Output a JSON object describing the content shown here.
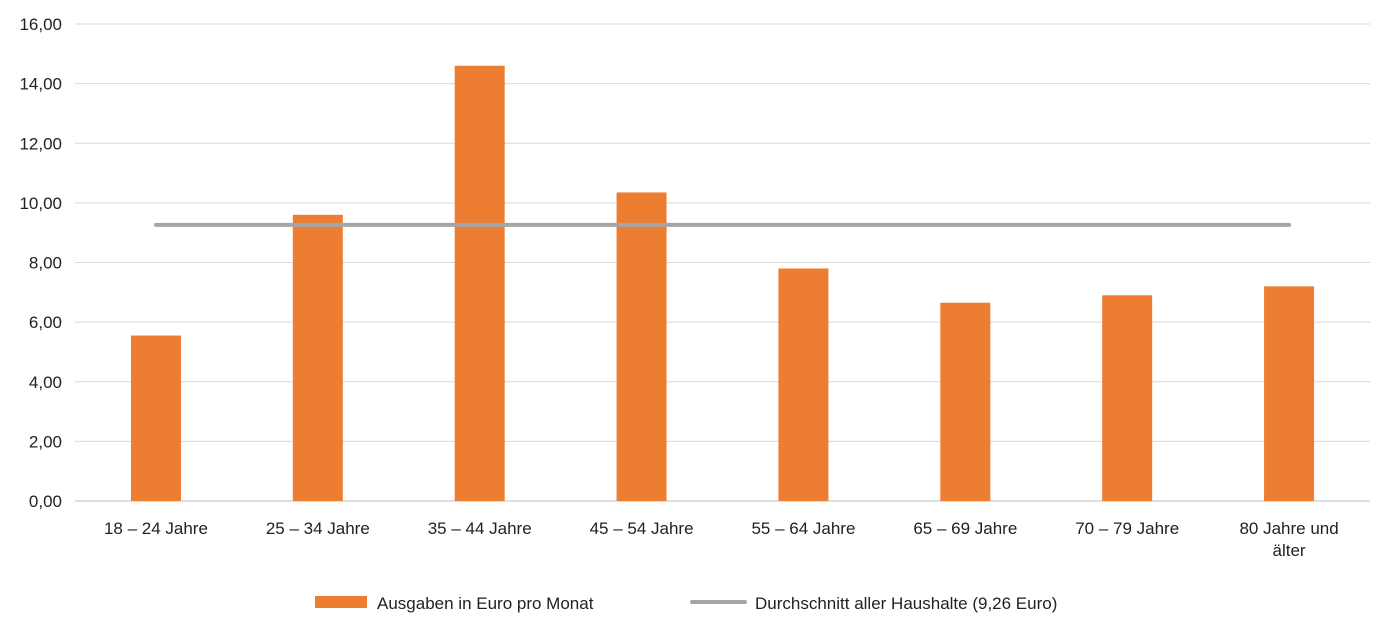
{
  "chart_data": {
    "type": "bar",
    "categories": [
      [
        "18 – 24 Jahre"
      ],
      [
        "25 – 34 Jahre"
      ],
      [
        "35 – 44 Jahre"
      ],
      [
        "45 – 54 Jahre"
      ],
      [
        "55 – 64 Jahre"
      ],
      [
        "65 – 69 Jahre"
      ],
      [
        "70 – 79 Jahre"
      ],
      [
        "80 Jahre und",
        "älter"
      ]
    ],
    "series": [
      {
        "name": "Ausgaben in Euro pro Monat",
        "type": "bar",
        "color": "#ED7D31",
        "values": [
          5.55,
          9.6,
          14.6,
          10.35,
          7.8,
          6.65,
          6.9,
          7.2
        ]
      },
      {
        "name": "Durchschnitt aller Haushalte (9,26 Euro)",
        "type": "line",
        "color": "#A5A5A5",
        "values": [
          9.26,
          9.26,
          9.26,
          9.26,
          9.26,
          9.26,
          9.26,
          9.26
        ]
      }
    ],
    "y_ticks": [
      "0,00",
      "2,00",
      "4,00",
      "6,00",
      "8,00",
      "10,00",
      "12,00",
      "14,00",
      "16,00"
    ],
    "ylim": [
      0,
      16
    ],
    "grid": "horizontal",
    "legend_position": "bottom"
  }
}
